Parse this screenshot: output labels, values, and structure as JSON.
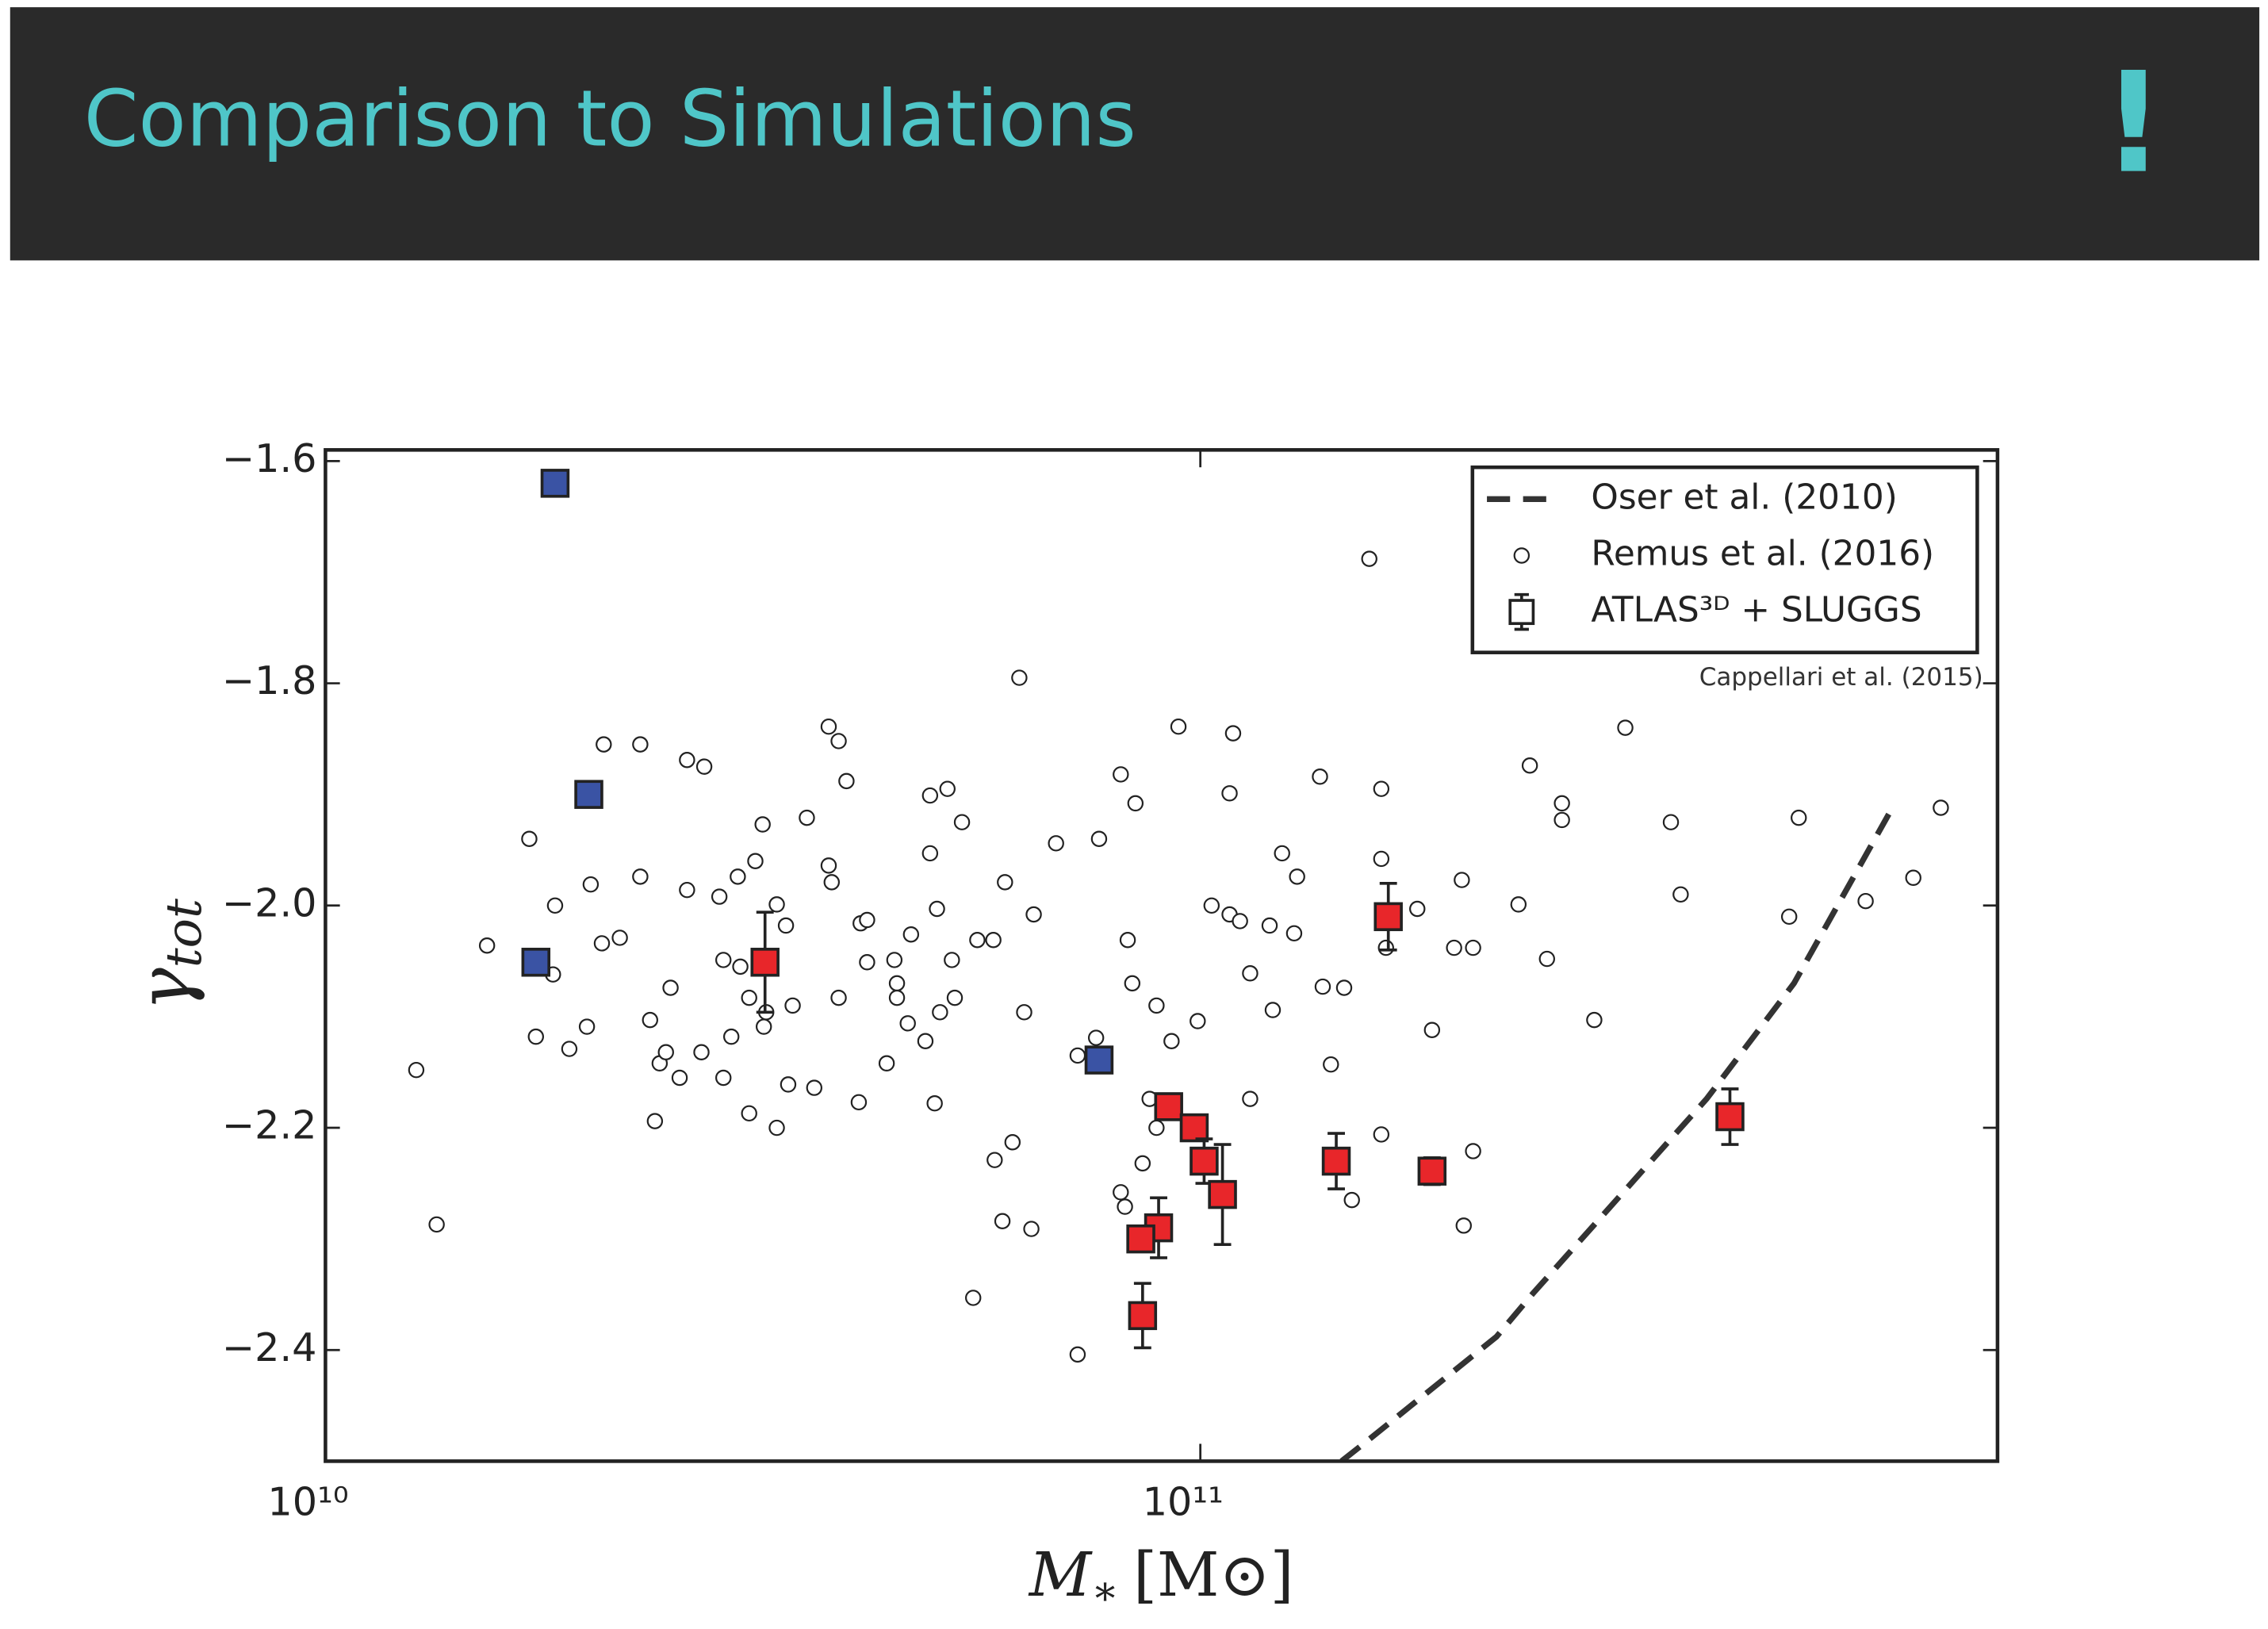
{
  "header": {
    "title": "Comparison to Simulations",
    "icon": "!"
  },
  "chart_data": {
    "type": "scatter",
    "xscale": "log",
    "xlim": [
      10000000000.0,
      815000000000.0
    ],
    "ylim": [
      -2.5,
      -1.59
    ],
    "xticks": [
      {
        "value": 10000000000.0,
        "label": "10¹⁰"
      },
      {
        "value": 100000000000.0,
        "label": "10¹¹"
      }
    ],
    "yticks": [
      {
        "value": -1.6,
        "label": "−1.6"
      },
      {
        "value": -1.8,
        "label": "−1.8"
      },
      {
        "value": -2.0,
        "label": "−2.0"
      },
      {
        "value": -2.2,
        "label": "−2.2"
      },
      {
        "value": -2.4,
        "label": "−2.4"
      }
    ],
    "x_label": {
      "symbol": "M",
      "subscript": "∗",
      "unit": "[M⊙]"
    },
    "y_label": {
      "symbol": "γ",
      "subscript": "tot"
    },
    "legend": "upper right",
    "annotation": "Cappellari et al. (2015)",
    "series": [
      {
        "name": "Oser et al. (2010)",
        "type": "line",
        "style": "dashed",
        "color": "#333333",
        "x": [
          145000000000.0,
          155000000000.0,
          218000000000.0,
          240000000000.0,
          379000000000.0,
          477000000000.0,
          621000000000.0
        ],
        "values": [
          -2.5,
          -2.482,
          -2.388,
          -2.349,
          -2.174,
          -2.07,
          -1.909
        ]
      },
      {
        "name": "Remus et al. (2016)",
        "type": "scatter",
        "marker": "circle",
        "color": "#ffffff",
        "x": [
          12700000000.0,
          13400000000.0,
          15300000000.0,
          17100000000.0,
          17400000000.0,
          18200000000.0,
          18300000000.0,
          19000000000.0,
          19900000000.0,
          20100000000.0,
          20800000000.0,
          20700000000.0,
          21700000000.0,
          22900000000.0,
          22900000000.0,
          23500000000.0,
          24100000000.0,
          24500000000.0,
          24800000000.0,
          25900000000.0,
          27100000000.0,
          28200000000.0,
          28500000000.0,
          29100000000.0,
          29600000000.0,
          29800000000.0,
          30500000000.0,
          30500000000.0,
          31000000000.0,
          31600000000.0,
          32800000000.0,
          32800000000.0,
          33600000000.0,
          34200000000.0,
          35500000000.0,
          37600000000.0,
          38600000000.0,
          39400000000.0,
          37600000000.0,
          40900000000.0,
          41600000000.0,
          40700000000.0,
          44700000000.0,
          46700000000.0,
          49100000000.0,
          49100000000.0,
          51400000000.0,
          53400000000.0,
          50000000000.0,
          52000000000.0,
          55600000000.0,
          58000000000.0,
          59800000000.0,
          61000000000.0,
          62100000000.0,
          64500000000.0,
          68400000000.0,
          72400000000.0,
          76600000000.0,
          81100000000.0,
          84300000000.0,
          82600000000.0,
          83600000000.0,
          81100000000.0,
          94400000000.0,
          99300000000.0,
          103000000000.0,
          108000000000.0,
          109000000000.0,
          108000000000.0,
          111000000000.0,
          114000000000.0,
          120000000000.0,
          124000000000.0,
          129000000000.0,
          137000000000.0,
          138000000000.0,
          141000000000.0,
          156000000000.0,
          161000000000.0,
          161000000000.0,
          163000000000.0,
          161000000000.0,
          177000000000.0,
          184000000000.0,
          195000000000.0,
          199000000000.0,
          205000000000.0,
          200000000000.0,
          205000000000.0,
          231000000000.0,
          238000000000.0,
          249000000000.0,
          259000000000.0,
          259000000000.0,
          282000000000.0,
          306000000000.0,
          345000000000.0,
          354000000000.0,
          471000000000.0,
          483000000000.0,
          576000000000.0,
          653000000000.0,
          702000000000.0,
          149000000000.0,
          146000000000.0,
          114000000000.0,
          121000000000.0,
          128000000000.0,
          82000000000.0,
          85900000000.0,
          72400000000.0,
          76000000000.0,
          87500000000.0,
          89100000000.0,
          89100000000.0,
          92700000000.0,
          59400000000.0,
          64100000000.0,
          55000000000.0,
          58200000000.0,
          62900000000.0,
          48500000000.0,
          46300000000.0,
          45000000000.0,
          43800000000.0,
          49700000000.0,
          31700000000.0,
          31900000000.0,
          33800000000.0,
          36200000000.0,
          37900000000.0,
          38600000000.0,
          41600000000.0,
          45000000000.0,
          50400000000.0,
          52400000000.0,
          23800000000.0,
          25400000000.0,
          26900000000.0,
          25900000000.0,
          28500000000.0
        ],
        "values": [
          -2.148,
          -2.287,
          -2.036,
          -1.94,
          -2.118,
          -2.062,
          -2.0,
          -2.129,
          -2.109,
          -1.981,
          -1.855,
          -2.034,
          -2.029,
          -1.855,
          -1.974,
          -2.103,
          -2.142,
          -2.132,
          -2.074,
          -1.869,
          -1.875,
          -1.992,
          -2.049,
          -2.118,
          -1.974,
          -2.055,
          -2.187,
          -2.083,
          -1.96,
          -1.927,
          -2.2,
          -1.999,
          -2.018,
          -2.09,
          -1.921,
          -1.839,
          -1.852,
          -1.888,
          -1.964,
          -2.016,
          -2.013,
          -2.177,
          -2.049,
          -2.026,
          -1.901,
          -1.953,
          -1.895,
          -1.925,
          -2.003,
          -2.049,
          -2.031,
          -2.031,
          -1.979,
          -2.213,
          -1.795,
          -2.008,
          -1.944,
          -2.404,
          -1.94,
          -1.882,
          -1.908,
          -2.031,
          -2.07,
          -2.258,
          -1.839,
          -2.104,
          -2.0,
          -2.008,
          -1.845,
          -1.899,
          -2.014,
          -2.061,
          -2.018,
          -1.953,
          -1.974,
          -1.884,
          -2.073,
          -2.143,
          -1.688,
          -1.895,
          -1.958,
          -2.038,
          -2.206,
          -2.003,
          -2.112,
          -2.038,
          -1.977,
          -2.038,
          -2.288,
          -2.221,
          -1.999,
          -1.874,
          -2.048,
          -1.908,
          -1.923,
          -2.103,
          -1.84,
          -1.925,
          -1.99,
          -2.01,
          -1.921,
          -1.996,
          -1.975,
          -1.912,
          -2.265,
          -2.074,
          -2.174,
          -2.094,
          -2.025,
          -2.271,
          -2.232,
          -2.135,
          -2.119,
          -2.174,
          -2.2,
          -2.09,
          -2.122,
          -2.284,
          -2.291,
          -2.353,
          -2.229,
          -2.096,
          -2.122,
          -2.106,
          -2.07,
          -2.142,
          -2.178,
          -2.109,
          -2.096,
          -2.161,
          -2.164,
          -1.979,
          -2.083,
          -2.051,
          -2.083,
          -2.096,
          -2.083,
          -2.194,
          -2.155,
          -2.132,
          -1.986,
          -2.155
        ]
      },
      {
        "name": "ATLAS³ᴰ + SLUGGS",
        "type": "scatter",
        "marker": "square",
        "color": "#e8262a",
        "x": [
          31800000000.0,
          92000000000.0,
          98400000000.0,
          101000000000.0,
          106000000000.0,
          89600000000.0,
          85500000000.0,
          85900000000.0,
          143000000000.0,
          164000000000.0,
          184000000000.0,
          403000000000.0
        ],
        "values": [
          -2.051,
          -2.181,
          -2.2,
          -2.23,
          -2.26,
          -2.29,
          -2.3,
          -2.369,
          -2.23,
          -2.01,
          -2.239,
          -2.19
        ],
        "errors": [
          0.045,
          0.01,
          0.005,
          0.02,
          0.045,
          0.027,
          0.01,
          0.029,
          0.025,
          0.03,
          0.012,
          0.025
        ]
      },
      {
        "type": "scatter",
        "marker": "square",
        "color": "#3a53a4",
        "x": [
          18300000000.0,
          20000000000.0,
          17400000000.0,
          76600000000.0
        ],
        "values": [
          -1.62,
          -1.9,
          -2.051,
          -2.139
        ]
      }
    ]
  }
}
